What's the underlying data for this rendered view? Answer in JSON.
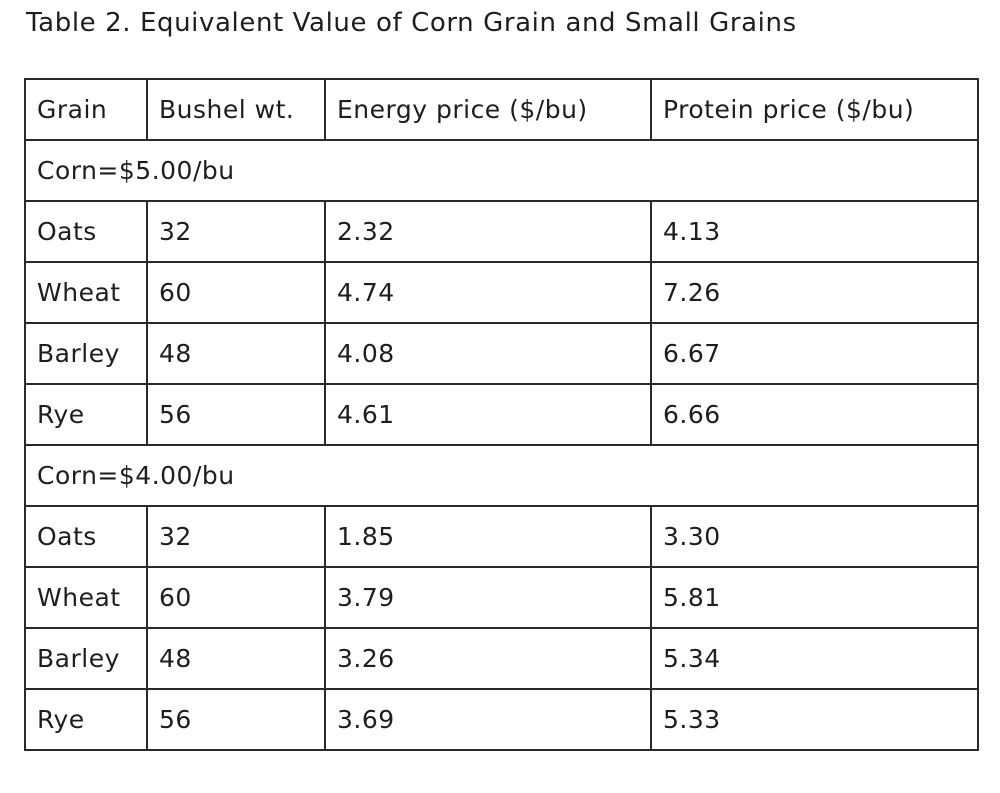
{
  "caption": "Table 2. Equivalent Value of Corn Grain and Small Grains",
  "headers": [
    "Grain",
    "Bushel wt.",
    "Energy price ($/bu)",
    "Protein price ($/bu)"
  ],
  "groups": [
    {
      "label": "Corn=$5.00/bu",
      "rows": [
        [
          "Oats",
          "32",
          "2.32",
          "4.13"
        ],
        [
          "Wheat",
          "60",
          "4.74",
          "7.26"
        ],
        [
          "Barley",
          "48",
          "4.08",
          "6.67"
        ],
        [
          "Rye",
          "56",
          "4.61",
          "6.66"
        ]
      ]
    },
    {
      "label": "Corn=$4.00/bu",
      "rows": [
        [
          "Oats",
          "32",
          "1.85",
          "3.30"
        ],
        [
          "Wheat",
          "60",
          "3.79",
          "5.81"
        ],
        [
          "Barley",
          "48",
          "3.26",
          "5.34"
        ],
        [
          "Rye",
          "56",
          "3.69",
          "5.33"
        ]
      ]
    }
  ]
}
